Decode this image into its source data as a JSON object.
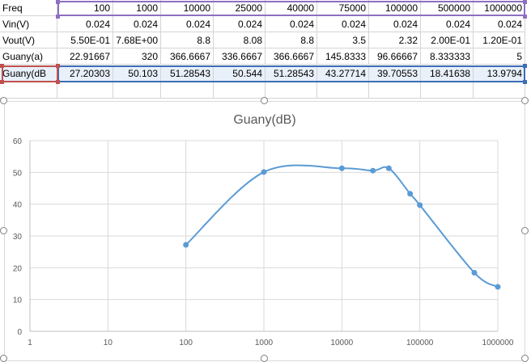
{
  "sheet": {
    "rows": [
      {
        "label": "Freq",
        "values": [
          "100",
          "1000",
          "10000",
          "25000",
          "40000",
          "75000",
          "100000",
          "500000",
          "1000000"
        ]
      },
      {
        "label": "Vin(V)",
        "values": [
          "0.024",
          "0.024",
          "0.024",
          "0.024",
          "0.024",
          "0.024",
          "0.024",
          "0.024",
          "0.024"
        ]
      },
      {
        "label": "Vout(V)",
        "values": [
          "5.50E-01",
          "7.68E+00",
          "8.8",
          "8.08",
          "8.8",
          "3.5",
          "2.32",
          "2.00E-01",
          "1.20E-01"
        ]
      },
      {
        "label": "Guany(a)",
        "values": [
          "22.91667",
          "320",
          "366.6667",
          "336.6667",
          "366.6667",
          "145.8333",
          "96.66667",
          "8.333333",
          "5"
        ]
      },
      {
        "label": "Guany(dB",
        "values": [
          "27.20303",
          "50.103",
          "51.28543",
          "50.544",
          "51.28543",
          "43.27714",
          "39.70553",
          "18.41638",
          "13.9794"
        ]
      }
    ]
  },
  "chart_data": {
    "type": "scatter",
    "title": "Guany(dB)",
    "xscale": "log",
    "xlim": [
      1,
      1000000
    ],
    "ylim": [
      0,
      60
    ],
    "x_ticks": [
      "1",
      "10",
      "100",
      "1000",
      "10000",
      "100000",
      "1000000"
    ],
    "y_ticks": [
      "0",
      "10",
      "20",
      "30",
      "40",
      "50",
      "60"
    ],
    "grid": true,
    "series": [
      {
        "x": [
          100,
          1000,
          10000,
          25000,
          40000,
          75000,
          100000,
          500000,
          1000000
        ],
        "y": [
          27.20303,
          50.103,
          51.28543,
          50.544,
          51.28543,
          43.27714,
          39.70553,
          18.41638,
          13.9794
        ],
        "color": "#5b9bd5",
        "smooth": true
      }
    ]
  }
}
